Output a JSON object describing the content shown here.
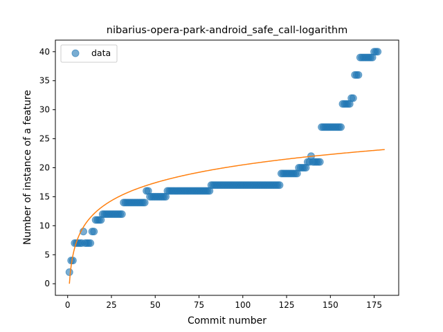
{
  "chart_data": {
    "type": "scatter",
    "title": "nibarius-opera-park-android_safe_call-logarithm",
    "xlabel": "Commit number",
    "ylabel": "Number of instance of a feature",
    "xlim": [
      -7,
      189
    ],
    "ylim": [
      -2,
      42
    ],
    "xticks": [
      0,
      25,
      50,
      75,
      100,
      125,
      150,
      175
    ],
    "yticks": [
      0,
      5,
      10,
      15,
      20,
      25,
      30,
      35,
      40
    ],
    "legend": {
      "placement": "upper-left",
      "entries": [
        "data"
      ]
    },
    "colors": {
      "data": "#1f77b4",
      "fit": "#ff7f0e"
    },
    "series": [
      {
        "name": "data",
        "style": "markers",
        "points": [
          [
            1,
            2
          ],
          [
            2,
            4
          ],
          [
            3,
            4
          ],
          [
            4,
            7
          ],
          [
            5,
            7
          ],
          [
            6,
            7
          ],
          [
            7,
            7
          ],
          [
            8,
            7
          ],
          [
            9,
            9
          ],
          [
            10,
            7
          ],
          [
            11,
            7
          ],
          [
            12,
            7
          ],
          [
            13,
            7
          ],
          [
            14,
            9
          ],
          [
            15,
            9
          ],
          [
            16,
            11
          ],
          [
            17,
            11
          ],
          [
            18,
            11
          ],
          [
            19,
            11
          ],
          [
            20,
            12
          ],
          [
            21,
            12
          ],
          [
            22,
            12
          ],
          [
            23,
            12
          ],
          [
            24,
            12
          ],
          [
            25,
            12
          ],
          [
            26,
            12
          ],
          [
            27,
            12
          ],
          [
            28,
            12
          ],
          [
            29,
            12
          ],
          [
            30,
            12
          ],
          [
            31,
            12
          ],
          [
            32,
            14
          ],
          [
            33,
            14
          ],
          [
            34,
            14
          ],
          [
            35,
            14
          ],
          [
            36,
            14
          ],
          [
            37,
            14
          ],
          [
            38,
            14
          ],
          [
            39,
            14
          ],
          [
            40,
            14
          ],
          [
            41,
            14
          ],
          [
            42,
            14
          ],
          [
            43,
            14
          ],
          [
            44,
            14
          ],
          [
            45,
            16
          ],
          [
            46,
            16
          ],
          [
            47,
            15
          ],
          [
            48,
            15
          ],
          [
            49,
            15
          ],
          [
            50,
            15
          ],
          [
            51,
            15
          ],
          [
            52,
            15
          ],
          [
            53,
            15
          ],
          [
            54,
            15
          ],
          [
            55,
            15
          ],
          [
            56,
            15
          ],
          [
            57,
            16
          ],
          [
            58,
            16
          ],
          [
            59,
            16
          ],
          [
            60,
            16
          ],
          [
            61,
            16
          ],
          [
            62,
            16
          ],
          [
            63,
            16
          ],
          [
            64,
            16
          ],
          [
            65,
            16
          ],
          [
            66,
            16
          ],
          [
            67,
            16
          ],
          [
            68,
            16
          ],
          [
            69,
            16
          ],
          [
            70,
            16
          ],
          [
            71,
            16
          ],
          [
            72,
            16
          ],
          [
            73,
            16
          ],
          [
            74,
            16
          ],
          [
            75,
            16
          ],
          [
            76,
            16
          ],
          [
            77,
            16
          ],
          [
            78,
            16
          ],
          [
            79,
            16
          ],
          [
            80,
            16
          ],
          [
            81,
            16
          ],
          [
            82,
            17
          ],
          [
            83,
            17
          ],
          [
            84,
            17
          ],
          [
            85,
            17
          ],
          [
            86,
            17
          ],
          [
            87,
            17
          ],
          [
            88,
            17
          ],
          [
            89,
            17
          ],
          [
            90,
            17
          ],
          [
            91,
            17
          ],
          [
            92,
            17
          ],
          [
            93,
            17
          ],
          [
            94,
            17
          ],
          [
            95,
            17
          ],
          [
            96,
            17
          ],
          [
            97,
            17
          ],
          [
            98,
            17
          ],
          [
            99,
            17
          ],
          [
            100,
            17
          ],
          [
            101,
            17
          ],
          [
            102,
            17
          ],
          [
            103,
            17
          ],
          [
            104,
            17
          ],
          [
            105,
            17
          ],
          [
            106,
            17
          ],
          [
            107,
            17
          ],
          [
            108,
            17
          ],
          [
            109,
            17
          ],
          [
            110,
            17
          ],
          [
            111,
            17
          ],
          [
            112,
            17
          ],
          [
            113,
            17
          ],
          [
            114,
            17
          ],
          [
            115,
            17
          ],
          [
            116,
            17
          ],
          [
            117,
            17
          ],
          [
            118,
            17
          ],
          [
            119,
            17
          ],
          [
            120,
            17
          ],
          [
            121,
            17
          ],
          [
            122,
            19
          ],
          [
            123,
            19
          ],
          [
            124,
            19
          ],
          [
            125,
            19
          ],
          [
            126,
            19
          ],
          [
            127,
            19
          ],
          [
            128,
            19
          ],
          [
            129,
            19
          ],
          [
            130,
            19
          ],
          [
            131,
            19
          ],
          [
            132,
            20
          ],
          [
            133,
            20
          ],
          [
            134,
            20
          ],
          [
            135,
            20
          ],
          [
            136,
            20
          ],
          [
            137,
            21
          ],
          [
            138,
            21
          ],
          [
            139,
            22
          ],
          [
            140,
            21
          ],
          [
            141,
            21
          ],
          [
            142,
            21
          ],
          [
            143,
            21
          ],
          [
            144,
            21
          ],
          [
            145,
            27
          ],
          [
            146,
            27
          ],
          [
            147,
            27
          ],
          [
            148,
            27
          ],
          [
            149,
            27
          ],
          [
            150,
            27
          ],
          [
            151,
            27
          ],
          [
            152,
            27
          ],
          [
            153,
            27
          ],
          [
            154,
            27
          ],
          [
            155,
            27
          ],
          [
            156,
            27
          ],
          [
            157,
            31
          ],
          [
            158,
            31
          ],
          [
            159,
            31
          ],
          [
            160,
            31
          ],
          [
            161,
            31
          ],
          [
            162,
            32
          ],
          [
            163,
            32
          ],
          [
            164,
            36
          ],
          [
            165,
            36
          ],
          [
            166,
            36
          ],
          [
            167,
            39
          ],
          [
            168,
            39
          ],
          [
            169,
            39
          ],
          [
            170,
            39
          ],
          [
            171,
            39
          ],
          [
            172,
            39
          ],
          [
            173,
            39
          ],
          [
            174,
            39
          ],
          [
            175,
            40
          ],
          [
            176,
            40
          ],
          [
            177,
            40
          ]
        ]
      },
      {
        "style": "line",
        "model": "logarithmic",
        "coefficients": {
          "a": 4.45,
          "b": 0
        },
        "x_range": [
          1,
          181
        ]
      }
    ]
  }
}
